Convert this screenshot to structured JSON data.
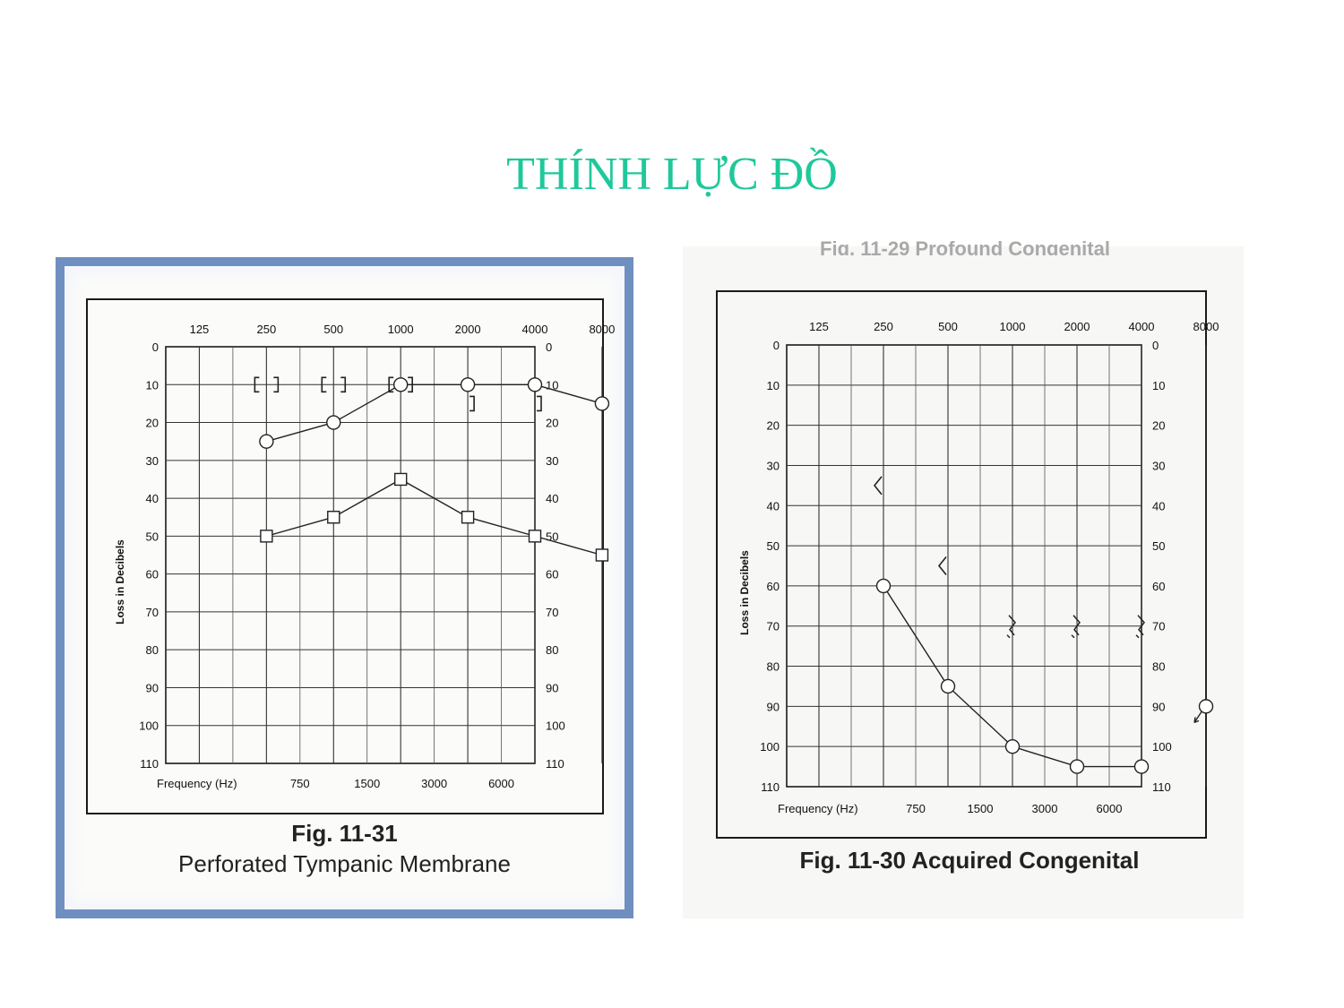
{
  "slide": {
    "title": "THÍNH LỰC ĐỒ",
    "title_color": "#1fc89a"
  },
  "panels": [
    {
      "caption_line1": "Fig. 11-31",
      "caption_line2": "Perforated Tympanic Membrane",
      "frame_color": "#6f8fc0"
    },
    {
      "caption_line1": "Fig. 11-30 Acquired Congenital",
      "caption_line2": "",
      "top_caption_partial": "Fig. 11-29 Profound Congenital"
    }
  ],
  "chart_data": [
    {
      "type": "line",
      "title": "Perforated Tympanic Membrane",
      "xlabel": "Frequency (Hz)",
      "ylabel": "Loss in Decibels",
      "x_top_ticks": [
        "125",
        "250",
        "500",
        "1000",
        "2000",
        "4000",
        "8000"
      ],
      "x_bottom_ticks": [
        "750",
        "1500",
        "3000",
        "6000"
      ],
      "y_ticks": [
        0,
        10,
        20,
        30,
        40,
        50,
        60,
        70,
        80,
        90,
        100,
        110
      ],
      "ylim": [
        0,
        110
      ],
      "y_inverted": true,
      "grid": true,
      "series": [
        {
          "marker": "circle",
          "x": [
            "250",
            "500",
            "1000",
            "2000",
            "4000",
            "8000"
          ],
          "values": [
            25,
            20,
            10,
            10,
            10,
            15
          ]
        },
        {
          "marker": "square",
          "x": [
            "250",
            "500",
            "1000",
            "2000",
            "4000",
            "8000"
          ],
          "values": [
            50,
            45,
            35,
            45,
            50,
            55
          ]
        },
        {
          "marker": "bracket",
          "connected": false,
          "points": [
            {
              "x": "250",
              "value": 10,
              "symbol": "[ ]"
            },
            {
              "x": "500",
              "value": 10,
              "symbol": "[ ]"
            },
            {
              "x": "1000",
              "value": 10,
              "symbol": "[ ]"
            },
            {
              "x": "2000",
              "value": 15,
              "symbol": "]"
            },
            {
              "x": "4000",
              "value": 15,
              "symbol": "]"
            }
          ]
        }
      ]
    },
    {
      "type": "line",
      "title": "Acquired Congenital",
      "xlabel": "Frequency (Hz)",
      "ylabel": "Loss in Decibels",
      "x_top_ticks": [
        "125",
        "250",
        "500",
        "1000",
        "2000",
        "4000",
        "8000"
      ],
      "x_bottom_ticks": [
        "750",
        "1500",
        "3000",
        "6000"
      ],
      "y_ticks": [
        0,
        10,
        20,
        30,
        40,
        50,
        60,
        70,
        80,
        90,
        100,
        110
      ],
      "ylim": [
        0,
        110
      ],
      "y_inverted": true,
      "grid": true,
      "series": [
        {
          "marker": "circle",
          "x": [
            "250",
            "500",
            "1000",
            "2000",
            "4000"
          ],
          "values": [
            60,
            85,
            100,
            105,
            105
          ]
        },
        {
          "marker": "circle-arrow",
          "connected": false,
          "points": [
            {
              "x": "8000",
              "value": 90
            }
          ]
        },
        {
          "marker": "angle",
          "connected": false,
          "points": [
            {
              "x": "250",
              "value": 35
            },
            {
              "x": "500",
              "value": 55
            }
          ]
        },
        {
          "marker": "zigzag",
          "connected": false,
          "points": [
            {
              "x": "1000",
              "value": 70
            },
            {
              "x": "2000",
              "value": 70
            },
            {
              "x": "4000",
              "value": 70
            }
          ]
        }
      ]
    }
  ]
}
